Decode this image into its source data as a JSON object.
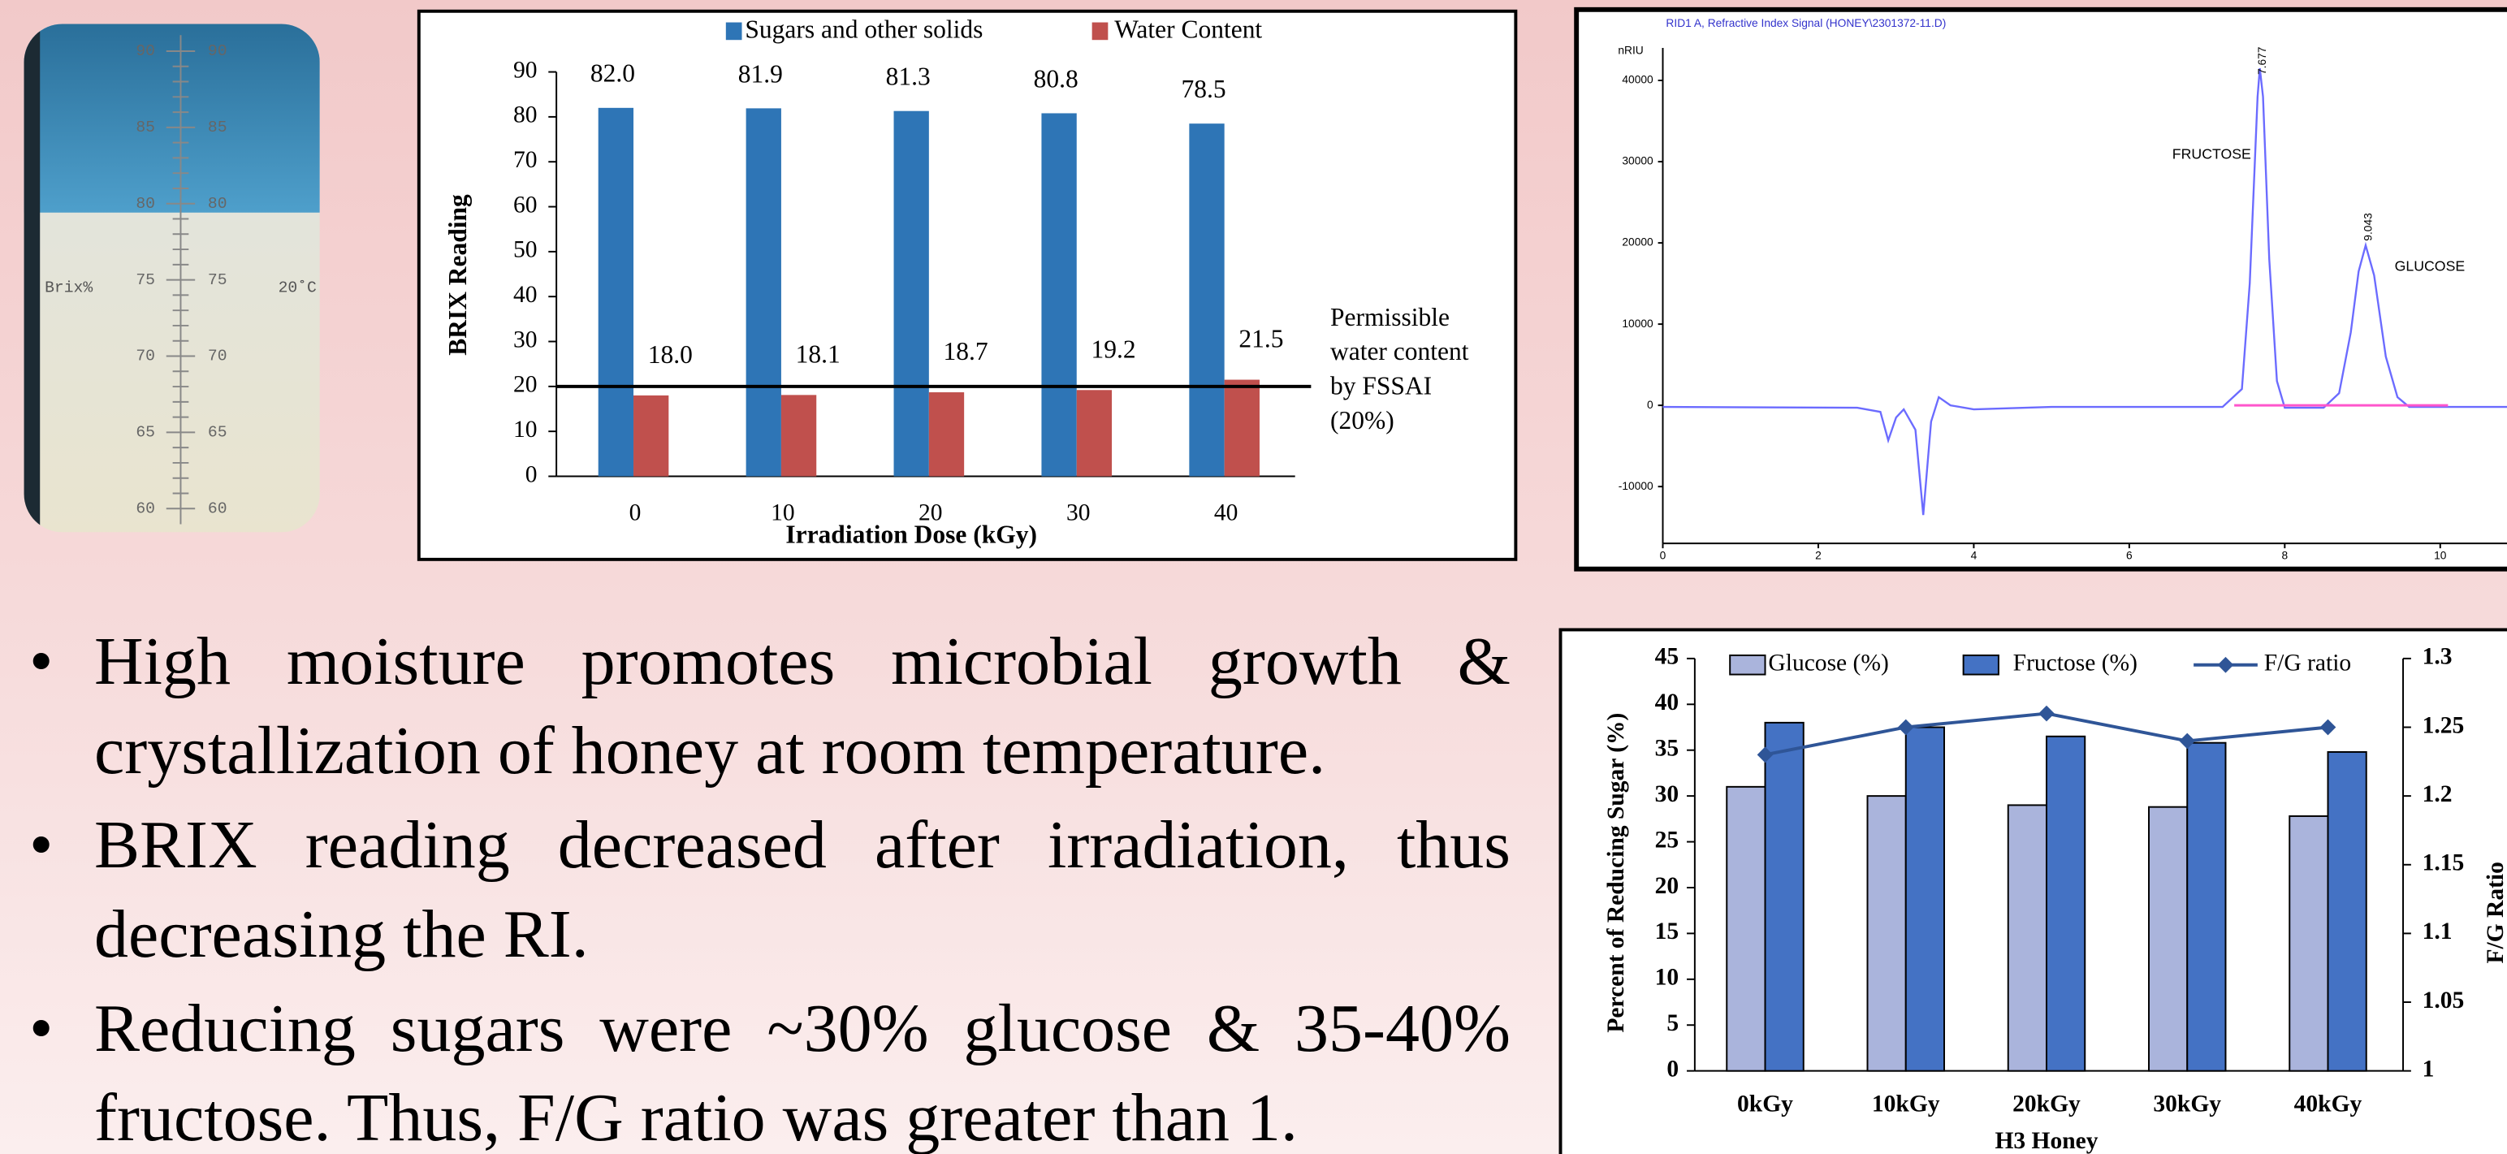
{
  "refractometer": {
    "scale_labels": [
      "90",
      "85",
      "80",
      "75",
      "70",
      "65",
      "60"
    ],
    "unit": "Brix%",
    "temperature": "20˚C"
  },
  "chart_data": [
    {
      "type": "bar",
      "categories": [
        "0",
        "10",
        "20",
        "30",
        "40"
      ],
      "series": [
        {
          "name": "Sugars and other solids",
          "color": "#2e75b6",
          "values": [
            82.0,
            81.9,
            81.3,
            80.8,
            78.5
          ],
          "value_labels": [
            "82.0",
            "81.9",
            "81.3",
            "80.8",
            "78.5"
          ]
        },
        {
          "name": "Water Content",
          "color": "#c0504d",
          "values": [
            18.0,
            18.1,
            18.7,
            19.2,
            21.5
          ],
          "value_labels": [
            "18.0",
            "18.1",
            "18.7",
            "19.2",
            "21.5"
          ]
        }
      ],
      "ylim": [
        0,
        90
      ],
      "yticks": [
        0,
        10,
        20,
        30,
        40,
        50,
        60,
        70,
        80,
        90
      ],
      "y_label": "BRIX Reading",
      "x_label": "Irradiation  Dose (kGy)",
      "reference_line": {
        "value": 20,
        "label": [
          "Permissible",
          "water content",
          "by FSSAI",
          "(20%)"
        ]
      },
      "legend": "top"
    },
    {
      "type": "line",
      "title": "RID1 A, Refractive Index Signal (HONEY\\2301372-11.D)",
      "y_label": "nRIU",
      "series": [
        {
          "color": "#6b6bff",
          "x": [
            0,
            2.5,
            2.8,
            2.9,
            3.0,
            3.1,
            3.25,
            3.35,
            3.45,
            3.55,
            3.7,
            4.0,
            5.0,
            7.2,
            7.45,
            7.55,
            7.65,
            7.68,
            7.72,
            7.8,
            7.9,
            8.0,
            8.5,
            8.7,
            8.85,
            8.95,
            9.04,
            9.15,
            9.3,
            9.45,
            9.6,
            10.9
          ],
          "values": [
            -200,
            -300,
            -800,
            -4300,
            -1500,
            -500,
            -3000,
            -13500,
            -2000,
            1000,
            0,
            -500,
            -200,
            -200,
            2000,
            15000,
            38000,
            41500,
            38000,
            18000,
            3000,
            -300,
            -300,
            1500,
            9000,
            16500,
            19700,
            16000,
            6000,
            1000,
            -200,
            -200
          ]
        },
        {
          "color": "#ff55cc",
          "x": [
            7.35,
            10.1
          ],
          "values": [
            0,
            0
          ]
        }
      ],
      "peaks": [
        {
          "name": "FRUCTOSE",
          "retention": 7.677
        },
        {
          "name": "GLUCOSE",
          "retention": 9.043
        }
      ],
      "xlim": [
        0,
        10.9
      ],
      "xticks": [
        0,
        2,
        4,
        6,
        8,
        10
      ],
      "ylim": [
        -17000,
        44000
      ],
      "yticks": [
        -10000,
        0,
        10000,
        20000,
        30000,
        40000
      ]
    },
    {
      "type": "bar",
      "categories": [
        "0kGy",
        "10kGy",
        "20kGy",
        "30kGy",
        "40kGy"
      ],
      "series": [
        {
          "name": "Glucose (%)",
          "color": "#aab4dc",
          "values": [
            31,
            30,
            29,
            28.8,
            27.8
          ]
        },
        {
          "name": "Fructose (%)",
          "color": "#4472c4",
          "values": [
            38,
            37.5,
            36.5,
            35.8,
            34.8
          ]
        },
        {
          "name": "F/G ratio",
          "color": "#2f5597",
          "axis": "y2",
          "type": "line",
          "values": [
            1.23,
            1.25,
            1.26,
            1.24,
            1.25
          ]
        }
      ],
      "ylim": [
        0,
        45
      ],
      "yticks": [
        0,
        5,
        10,
        15,
        20,
        25,
        30,
        35,
        40,
        45
      ],
      "y2lim": [
        1,
        1.3
      ],
      "y2ticks": [
        1,
        1.05,
        1.1,
        1.15,
        1.2,
        1.25,
        1.3
      ],
      "y_label": "Percent of Reducing Sugar (%)",
      "y2_label": "F/G Ratio",
      "x_label": "H3 Honey",
      "legend": "top"
    }
  ],
  "bullets": [
    "High moisture promotes microbial growth & crystallization of honey at room temperature.",
    "BRIX reading decreased after irradiation, thus decreasing the RI.",
    "Reducing sugars were ~30% glucose & 35-40% fructose. Thus, F/G ratio was greater than 1."
  ]
}
